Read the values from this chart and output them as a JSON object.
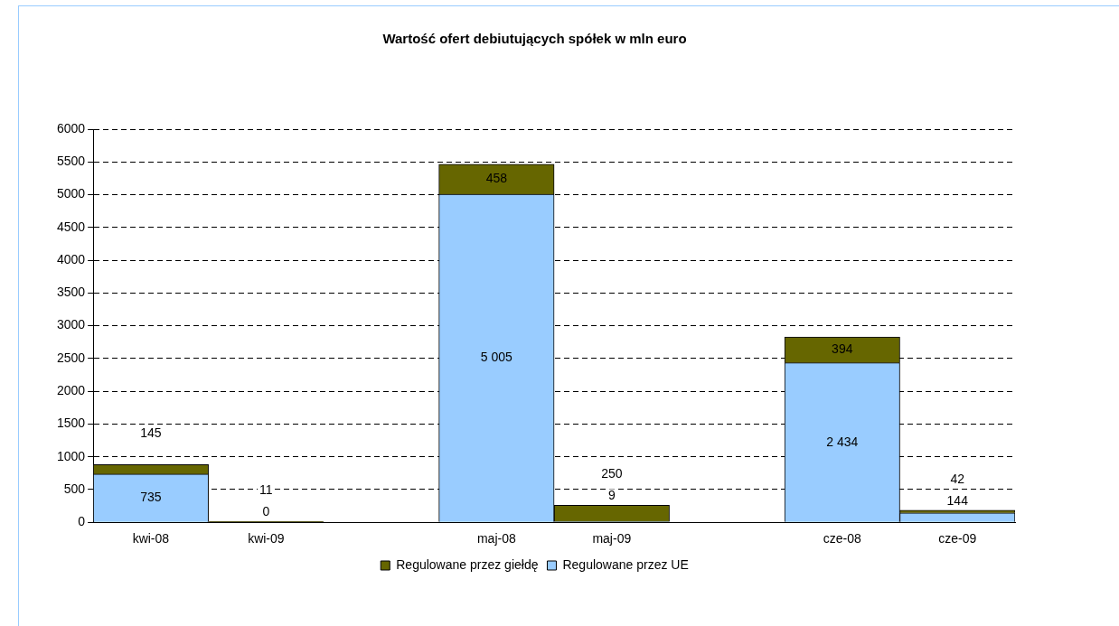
{
  "chart_data": {
    "type": "bar",
    "title": "Wartość ofert debiutujących spółek w mln euro",
    "stacked": true,
    "categories": [
      "kwi-08",
      "kwi-09",
      null,
      "maj-08",
      "maj-09",
      null,
      "cze-08",
      "cze-09"
    ],
    "series": [
      {
        "name": "Regulowane przez UE",
        "color": "#99ccff",
        "values": [
          735,
          0,
          null,
          5005,
          9,
          null,
          2434,
          144
        ],
        "value_labels": [
          "735",
          "0",
          null,
          "5 005",
          "9",
          null,
          "2 434",
          "144"
        ]
      },
      {
        "name": "Regulowane przez giełdę",
        "color": "#666600",
        "values": [
          145,
          11,
          null,
          458,
          250,
          null,
          394,
          42
        ],
        "value_labels": [
          "145",
          "11",
          null,
          "458",
          "250",
          null,
          "394",
          "42"
        ]
      }
    ],
    "ylim": [
      0,
      6000
    ],
    "yticks": [
      0,
      500,
      1000,
      1500,
      2000,
      2500,
      3000,
      3500,
      4000,
      4500,
      5000,
      5500,
      6000
    ],
    "grid": "y",
    "legend": "bottom"
  }
}
